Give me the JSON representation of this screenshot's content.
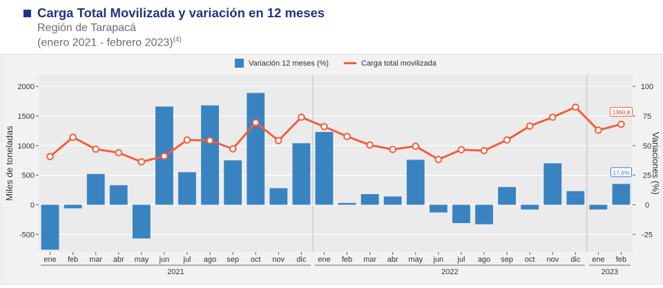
{
  "header": {
    "title": "Carga Total Movilizada y variación en 12 meses",
    "subtitle": "Región de Tarapacá",
    "period": "(enero 2021 - febrero 2023)",
    "note": "(4)"
  },
  "colors": {
    "title": "#1f3580",
    "bar": "#3a83c1",
    "line": "#f45d3b",
    "panel": "#ebebeb",
    "grid": "#ffffff",
    "divider": "#bfbfbf"
  },
  "chart_data": {
    "type": "bar+line",
    "categories": [
      "ene",
      "feb",
      "mar",
      "abr",
      "may",
      "jun",
      "jul",
      "ago",
      "sep",
      "oct",
      "nov",
      "dic",
      "ene",
      "feb",
      "mar",
      "abr",
      "may",
      "jun",
      "jul",
      "ago",
      "sep",
      "oct",
      "nov",
      "dic",
      "ene",
      "feb"
    ],
    "years": [
      {
        "label": "2021",
        "count": 12
      },
      {
        "label": "2022",
        "count": 12
      },
      {
        "label": "2023",
        "count": 2
      }
    ],
    "series": [
      {
        "name": "Variación 12 meses (%)",
        "kind": "bar",
        "axis": "right",
        "values": [
          -38,
          -3,
          26,
          16.5,
          -28.5,
          83,
          27.5,
          84,
          37.5,
          94.5,
          14,
          52,
          61.5,
          1.5,
          9,
          7,
          38,
          -6.5,
          -15.5,
          -16.5,
          15,
          -4,
          35,
          11.5,
          -4,
          17.6
        ]
      },
      {
        "name": "Carga total movilizada",
        "kind": "line",
        "axis": "left",
        "values": [
          815,
          1140,
          940,
          880,
          725,
          820,
          1095,
          1085,
          945,
          1390,
          1085,
          1480,
          1320,
          1155,
          1010,
          935,
          990,
          765,
          930,
          915,
          1095,
          1330,
          1480,
          1650,
          1260,
          1360.8
        ]
      }
    ],
    "ylabel_left": "Miles de toneladas",
    "ylabel_right": "Variaciones (%)",
    "ylim_left": [
      -800,
      2200
    ],
    "yticks_left": [
      -500,
      0,
      500,
      1000,
      1500,
      2000
    ],
    "ylim_right": [
      -40,
      110
    ],
    "yticks_right": [
      -25,
      0,
      25,
      50,
      75,
      100
    ],
    "annotations": [
      {
        "series": "Carga total movilizada",
        "index": 25,
        "text": "1360,8"
      },
      {
        "series": "Variación 12 meses (%)",
        "index": 25,
        "text": "17,6%"
      }
    ],
    "legend_position": "top-center",
    "grid": true
  }
}
